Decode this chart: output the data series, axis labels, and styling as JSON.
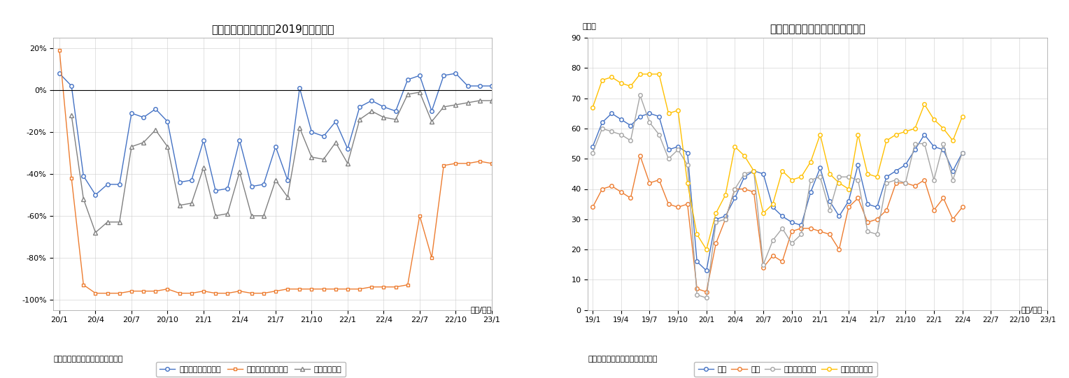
{
  "chart1": {
    "title": "延べ宿泊者数の推移（2019年同月比）",
    "xlabel_unit": "（年/月）",
    "source": "（出典）観光庁「宿泊旅行統計」",
    "xtick_labels": [
      "20/1",
      "20/4",
      "20/7",
      "20/10",
      "21/1",
      "21/4",
      "21/7",
      "21/10",
      "22/1",
      "22/4",
      "22/7",
      "22/10",
      "23/1"
    ],
    "xtick_positions": [
      0,
      3,
      6,
      9,
      12,
      15,
      18,
      21,
      24,
      27,
      30,
      33,
      36
    ],
    "ylim": [
      -105,
      25
    ],
    "yticks": [
      -100,
      -80,
      -60,
      -40,
      -20,
      0,
      20
    ],
    "ytick_labels": [
      "-100%",
      "-80%",
      "-60%",
      "-40%",
      "-20%",
      "0%",
      "20%"
    ],
    "series": {
      "japanese": {
        "label": "日本人延べ宿泊者数",
        "color": "#4472c4",
        "marker": "o",
        "markersize": 4,
        "values": [
          8,
          2,
          -41,
          -50,
          -45,
          -45,
          -11,
          -13,
          -9,
          -15,
          -44,
          -43,
          -24,
          -48,
          -47,
          -24,
          -46,
          -45,
          -27,
          -43,
          1,
          -20,
          -22,
          -15,
          -28,
          -8,
          -5,
          -8,
          -10,
          5,
          7,
          -10,
          7,
          8,
          2,
          2,
          2
        ]
      },
      "foreign": {
        "label": "外国人延べ宿泊者数",
        "color": "#ed7d31",
        "marker": "s",
        "markersize": 3.5,
        "values": [
          19,
          -42,
          -93,
          -97,
          -97,
          -97,
          -96,
          -96,
          -96,
          -95,
          -97,
          -97,
          -96,
          -97,
          -97,
          -96,
          -97,
          -97,
          -96,
          -95,
          -95,
          -95,
          -95,
          -95,
          -95,
          -95,
          -94,
          -94,
          -94,
          -93,
          -60,
          -80,
          -36,
          -35,
          -35,
          -34,
          -35
        ]
      },
      "total": {
        "label": "延べ宿泊者数",
        "color": "#808080",
        "marker": "^",
        "markersize": 4,
        "values": [
          null,
          -12,
          -52,
          -68,
          -63,
          -63,
          -27,
          -25,
          -19,
          -27,
          -55,
          -54,
          -37,
          -60,
          -59,
          -39,
          -60,
          -60,
          -43,
          -51,
          -18,
          -32,
          -33,
          -25,
          -35,
          -14,
          -10,
          -13,
          -14,
          -2,
          -1,
          -15,
          -8,
          -7,
          -6,
          -5,
          -5
        ]
      }
    }
  },
  "chart2": {
    "title": "宿泊施設タイプ別客室稼働率推移",
    "ylabel_unit": "（％）",
    "xlabel_unit": "（年/月）",
    "source": "（出典）観光庁「宿泊旅行統計」",
    "xtick_labels": [
      "19/1",
      "19/4",
      "19/7",
      "19/10",
      "20/1",
      "20/4",
      "20/7",
      "20/10",
      "21/1",
      "21/4",
      "21/7",
      "21/10",
      "22/1",
      "22/4",
      "22/7",
      "22/10",
      "23/1"
    ],
    "xtick_positions": [
      0,
      3,
      6,
      9,
      12,
      15,
      18,
      21,
      24,
      27,
      30,
      33,
      36,
      39,
      42,
      45,
      48
    ],
    "ylim": [
      0,
      90
    ],
    "yticks": [
      0,
      10,
      20,
      30,
      40,
      50,
      60,
      70,
      80,
      90
    ],
    "series": {
      "all": {
        "label": "全体",
        "color": "#4472c4",
        "marker": "o",
        "markersize": 4,
        "values": [
          54,
          62,
          65,
          63,
          61,
          64,
          65,
          64,
          53,
          54,
          52,
          16,
          13,
          30,
          31,
          37,
          44,
          46,
          45,
          34,
          31,
          29,
          28,
          39,
          47,
          36,
          31,
          36,
          48,
          35,
          34,
          44,
          46,
          48,
          53,
          58,
          54,
          53,
          46,
          52
        ]
      },
      "ryokan": {
        "label": "旅館",
        "color": "#ed7d31",
        "marker": "o",
        "markersize": 4,
        "values": [
          34,
          40,
          41,
          39,
          37,
          51,
          42,
          43,
          35,
          34,
          35,
          7,
          6,
          22,
          30,
          40,
          40,
          39,
          14,
          18,
          16,
          26,
          27,
          27,
          26,
          25,
          20,
          34,
          37,
          29,
          30,
          33,
          42,
          42,
          41,
          43,
          33,
          37,
          30,
          34
        ]
      },
      "resort": {
        "label": "リゾートホテル",
        "color": "#a5a5a5",
        "marker": "o",
        "markersize": 4,
        "values": [
          52,
          60,
          59,
          58,
          56,
          71,
          62,
          58,
          50,
          53,
          48,
          5,
          4,
          29,
          30,
          40,
          45,
          46,
          15,
          23,
          27,
          22,
          25,
          43,
          44,
          33,
          44,
          44,
          43,
          26,
          25,
          42,
          43,
          42,
          55,
          55,
          43,
          55,
          43,
          52
        ]
      },
      "business": {
        "label": "ビジネスホテル",
        "color": "#ffc000",
        "marker": "o",
        "markersize": 4,
        "values": [
          67,
          76,
          77,
          75,
          74,
          78,
          78,
          78,
          65,
          66,
          42,
          25,
          20,
          32,
          38,
          54,
          51,
          46,
          32,
          35,
          46,
          43,
          44,
          49,
          58,
          45,
          42,
          40,
          58,
          45,
          44,
          56,
          58,
          59,
          60,
          68,
          63,
          60,
          56,
          64
        ]
      }
    }
  }
}
